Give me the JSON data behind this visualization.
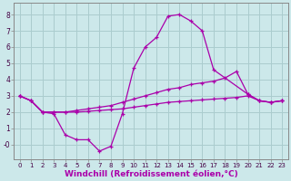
{
  "background_color": "#cce8ea",
  "grid_color": "#aaccce",
  "line_color": "#aa00aa",
  "xlabel": "Windchill (Refroidissement éolien,°C)",
  "xlabel_fontsize": 6.5,
  "xlim": [
    -0.5,
    23.5
  ],
  "ylim": [
    -0.9,
    8.7
  ],
  "yticks": [
    0,
    1,
    2,
    3,
    4,
    5,
    6,
    7,
    8
  ],
  "ytick_labels": [
    "-0",
    "1",
    "2",
    "3",
    "4",
    "5",
    "6",
    "7",
    "8"
  ],
  "line_big": {
    "x": [
      0,
      1,
      2,
      3,
      4,
      5,
      6,
      7,
      8,
      9,
      10,
      11,
      12,
      13,
      14,
      15,
      16,
      17,
      20,
      21,
      22,
      23
    ],
    "y": [
      3.0,
      2.7,
      2.0,
      1.9,
      0.6,
      0.3,
      0.3,
      -0.4,
      -0.1,
      1.9,
      4.7,
      6.0,
      6.6,
      7.9,
      8.0,
      7.6,
      7.0,
      4.6,
      3.1,
      2.7,
      2.6,
      2.7
    ]
  },
  "line_upper": {
    "x": [
      0,
      1,
      2,
      3,
      4,
      5,
      6,
      7,
      8,
      9,
      10,
      11,
      12,
      13,
      14,
      15,
      16,
      17,
      18,
      19,
      20,
      21,
      22,
      23
    ],
    "y": [
      3.0,
      2.7,
      2.0,
      2.0,
      2.0,
      2.1,
      2.2,
      2.3,
      2.4,
      2.6,
      2.8,
      3.0,
      3.2,
      3.4,
      3.5,
      3.7,
      3.8,
      3.9,
      4.1,
      4.5,
      3.1,
      2.7,
      2.6,
      2.7
    ]
  },
  "line_lower": {
    "x": [
      0,
      1,
      2,
      3,
      4,
      5,
      6,
      7,
      8,
      9,
      10,
      11,
      12,
      13,
      14,
      15,
      16,
      17,
      18,
      19,
      20,
      21,
      22,
      23
    ],
    "y": [
      3.0,
      2.7,
      2.0,
      2.0,
      2.0,
      2.0,
      2.05,
      2.1,
      2.15,
      2.2,
      2.3,
      2.4,
      2.5,
      2.6,
      2.65,
      2.7,
      2.75,
      2.8,
      2.85,
      2.9,
      3.0,
      2.7,
      2.6,
      2.7
    ]
  }
}
